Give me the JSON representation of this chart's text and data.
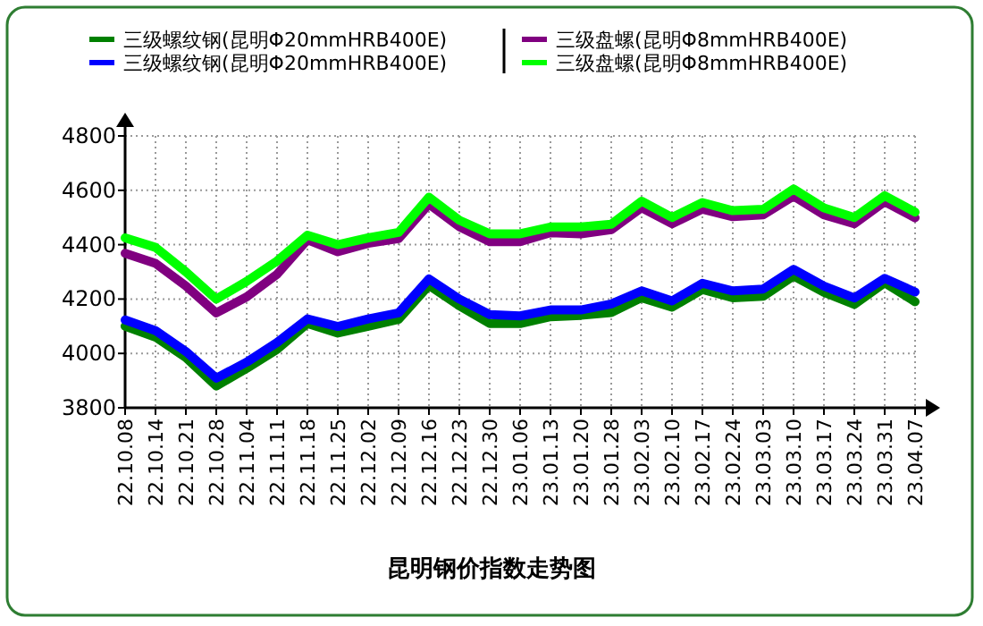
{
  "chart_data": {
    "type": "line",
    "title": "昆明钢价指数走势图",
    "categories": [
      "22.10.08",
      "22.10.14",
      "22.10.21",
      "22.10.28",
      "22.11.04",
      "22.11.11",
      "22.11.18",
      "22.11.25",
      "22.12.02",
      "22.12.09",
      "22.12.16",
      "22.12.23",
      "22.12.30",
      "23.01.06",
      "23.01.13",
      "23.01.20",
      "23.01.28",
      "23.02.03",
      "23.02.10",
      "23.02.17",
      "23.02.24",
      "23.03.03",
      "23.03.10",
      "23.03.17",
      "23.03.24",
      "23.03.31",
      "23.04.07"
    ],
    "series": [
      {
        "name": "三级螺纹钢(昆明Φ20mmHRB400E)",
        "color": "#008000",
        "values": [
          4100,
          4060,
          3985,
          3880,
          3945,
          4015,
          4110,
          4075,
          4100,
          4125,
          4250,
          4175,
          4110,
          4110,
          4135,
          4140,
          4150,
          4205,
          4170,
          4235,
          4205,
          4210,
          4285,
          4225,
          4180,
          4260,
          4190
        ]
      },
      {
        "name": "三级螺纹钢(昆明Φ20mmHRB400E)",
        "color": "#0000ff",
        "values": [
          4123,
          4084,
          4007,
          3909,
          3968,
          4040,
          4127,
          4099,
          4127,
          4149,
          4274,
          4200,
          4143,
          4138,
          4160,
          4160,
          4182,
          4230,
          4193,
          4258,
          4230,
          4237,
          4309,
          4248,
          4204,
          4276,
          4226
        ]
      },
      {
        "name": "三级盘螺(昆明Φ8mmHRB400E)",
        "color": "#800080",
        "values": [
          4368,
          4331,
          4248,
          4149,
          4208,
          4291,
          4418,
          4374,
          4405,
          4422,
          4549,
          4466,
          4411,
          4411,
          4444,
          4440,
          4455,
          4536,
          4477,
          4531,
          4503,
          4510,
          4579,
          4510,
          4477,
          4558,
          4499
        ]
      },
      {
        "name": "三级盘螺(昆明Φ8mmHRB400E)",
        "color": "#00ff00",
        "values": [
          4425,
          4390,
          4300,
          4200,
          4265,
          4340,
          4435,
          4400,
          4425,
          4445,
          4575,
          4490,
          4440,
          4440,
          4465,
          4465,
          4475,
          4560,
          4500,
          4555,
          4525,
          4530,
          4605,
          4535,
          4500,
          4580,
          4520
        ]
      }
    ],
    "ylim": [
      3800,
      4800
    ],
    "yticks": [
      3800,
      4000,
      4200,
      4400,
      4600,
      4800
    ],
    "grid": true,
    "legend": "top"
  }
}
